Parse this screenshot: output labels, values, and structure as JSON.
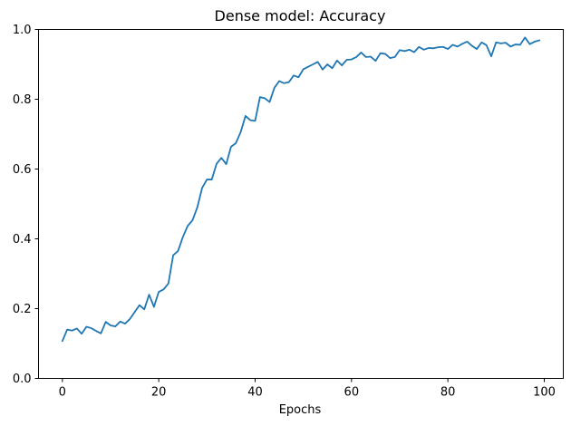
{
  "chart_data": {
    "type": "line",
    "title": "Dense model: Accuracy",
    "xlabel": "Epochs",
    "ylabel": "",
    "xlim": [
      -4.95,
      103.95
    ],
    "ylim": [
      0.0,
      1.0
    ],
    "x_ticks": [
      "0",
      "20",
      "40",
      "60",
      "80",
      "100"
    ],
    "y_ticks": [
      "0.0",
      "0.2",
      "0.4",
      "0.6",
      "0.8",
      "1.0"
    ],
    "grid": false,
    "legend": "none",
    "series": [
      {
        "color": "#1f77b4",
        "x": [
          0,
          1,
          2,
          3,
          4,
          5,
          6,
          7,
          8,
          9,
          10,
          11,
          12,
          13,
          14,
          15,
          16,
          17,
          18,
          19,
          20,
          21,
          22,
          23,
          24,
          25,
          26,
          27,
          28,
          29,
          30,
          31,
          32,
          33,
          34,
          35,
          36,
          37,
          38,
          39,
          40,
          41,
          42,
          43,
          44,
          45,
          46,
          47,
          48,
          49,
          50,
          51,
          52,
          53,
          54,
          55,
          56,
          57,
          58,
          59,
          60,
          61,
          62,
          63,
          64,
          65,
          66,
          67,
          68,
          69,
          70,
          71,
          72,
          73,
          74,
          75,
          76,
          77,
          78,
          79,
          80,
          81,
          82,
          83,
          84,
          85,
          86,
          87,
          88,
          89,
          90,
          91,
          92,
          93,
          94,
          95,
          96,
          97,
          98,
          99
        ],
        "values": [
          0.107,
          0.14,
          0.137,
          0.143,
          0.128,
          0.148,
          0.144,
          0.136,
          0.129,
          0.162,
          0.152,
          0.149,
          0.163,
          0.157,
          0.17,
          0.19,
          0.21,
          0.198,
          0.24,
          0.205,
          0.248,
          0.255,
          0.272,
          0.353,
          0.365,
          0.405,
          0.437,
          0.453,
          0.49,
          0.546,
          0.57,
          0.57,
          0.615,
          0.632,
          0.614,
          0.664,
          0.674,
          0.706,
          0.752,
          0.74,
          0.738,
          0.806,
          0.803,
          0.792,
          0.833,
          0.852,
          0.846,
          0.849,
          0.868,
          0.863,
          0.886,
          0.893,
          0.9,
          0.907,
          0.885,
          0.9,
          0.889,
          0.911,
          0.897,
          0.913,
          0.914,
          0.921,
          0.934,
          0.921,
          0.922,
          0.91,
          0.932,
          0.93,
          0.918,
          0.921,
          0.941,
          0.938,
          0.942,
          0.935,
          0.95,
          0.942,
          0.947,
          0.946,
          0.949,
          0.95,
          0.944,
          0.956,
          0.951,
          0.959,
          0.965,
          0.953,
          0.944,
          0.963,
          0.955,
          0.923,
          0.963,
          0.96,
          0.962,
          0.951,
          0.957,
          0.956,
          0.977,
          0.958,
          0.965,
          0.969
        ]
      }
    ]
  }
}
